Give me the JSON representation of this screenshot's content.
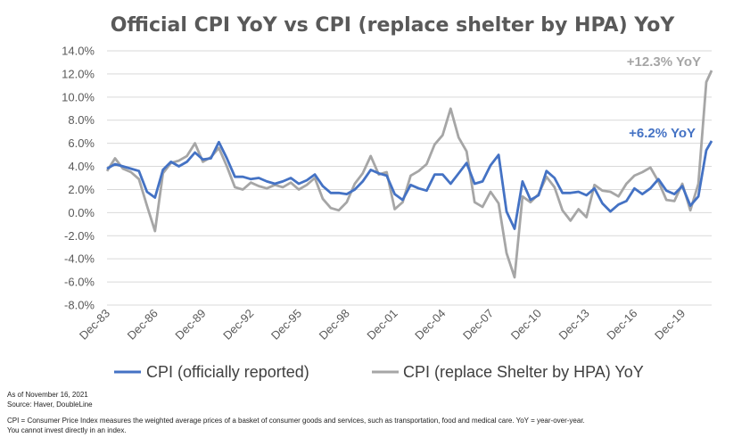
{
  "chart_data": {
    "type": "line",
    "title": "Official CPI YoY vs CPI (replace shelter by HPA) YoY",
    "xlabel": "",
    "ylabel": "",
    "ylim": [
      -8,
      14
    ],
    "y_ticks": [
      "14.0%",
      "12.0%",
      "10.0%",
      "8.0%",
      "6.0%",
      "4.0%",
      "2.0%",
      "0.0%",
      "-2.0%",
      "-4.0%",
      "-6.0%",
      "-8.0%"
    ],
    "x_ticks": [
      "Dec-83",
      "Dec-86",
      "Dec-89",
      "Dec-92",
      "Dec-95",
      "Dec-98",
      "Dec-01",
      "Dec-04",
      "Dec-07",
      "Dec-10",
      "Dec-13",
      "Dec-16",
      "Dec-19"
    ],
    "grid": "horizontal",
    "legend": "bottom",
    "series": [
      {
        "name": "CPI (officially reported)",
        "color": "#4472C4",
        "x": [
          "Dec-83",
          "Jun-84",
          "Dec-84",
          "Jun-85",
          "Dec-85",
          "Jun-86",
          "Dec-86",
          "Jun-87",
          "Dec-87",
          "Jun-88",
          "Dec-88",
          "Jun-89",
          "Dec-89",
          "Jun-90",
          "Dec-90",
          "Jun-91",
          "Dec-91",
          "Jun-92",
          "Dec-92",
          "Jun-93",
          "Dec-93",
          "Jun-94",
          "Dec-94",
          "Jun-95",
          "Dec-95",
          "Jun-96",
          "Dec-96",
          "Jun-97",
          "Dec-97",
          "Jun-98",
          "Dec-98",
          "Jun-99",
          "Dec-99",
          "Jun-00",
          "Dec-00",
          "Jun-01",
          "Dec-01",
          "Jun-02",
          "Dec-02",
          "Jun-03",
          "Dec-03",
          "Jun-04",
          "Dec-04",
          "Jun-05",
          "Dec-05",
          "Jun-06",
          "Dec-06",
          "Jun-07",
          "Dec-07",
          "Jun-08",
          "Dec-08",
          "Jun-09",
          "Dec-09",
          "Jun-10",
          "Dec-10",
          "Jun-11",
          "Dec-11",
          "Jun-12",
          "Dec-12",
          "Jun-13",
          "Dec-13",
          "Jun-14",
          "Dec-14",
          "Jun-15",
          "Dec-15",
          "Jun-16",
          "Dec-16",
          "Jun-17",
          "Dec-17",
          "Jun-18",
          "Dec-18",
          "Jun-19",
          "Dec-19",
          "Jun-20",
          "Dec-20",
          "Jun-21",
          "Oct-21"
        ],
        "values": [
          3.8,
          4.2,
          4.0,
          3.8,
          3.6,
          1.8,
          1.3,
          3.7,
          4.4,
          4.0,
          4.4,
          5.2,
          4.6,
          4.7,
          6.1,
          4.7,
          3.1,
          3.1,
          2.9,
          3.0,
          2.7,
          2.5,
          2.7,
          3.0,
          2.5,
          2.8,
          3.3,
          2.3,
          1.7,
          1.7,
          1.6,
          2.0,
          2.7,
          3.7,
          3.4,
          3.2,
          1.6,
          1.1,
          2.4,
          2.1,
          1.9,
          3.3,
          3.3,
          2.5,
          3.4,
          4.3,
          2.5,
          2.7,
          4.1,
          5.0,
          0.1,
          -1.4,
          2.7,
          1.1,
          1.5,
          3.6,
          3.0,
          1.7,
          1.7,
          1.8,
          1.5,
          2.1,
          0.8,
          0.1,
          0.7,
          1.0,
          2.1,
          1.6,
          2.1,
          2.9,
          1.9,
          1.6,
          2.3,
          0.6,
          1.4,
          5.4,
          6.2
        ]
      },
      {
        "name": "CPI (replace Shelter by HPA) YoY",
        "color": "#A6A6A6",
        "x": [
          "Dec-83",
          "Jun-84",
          "Dec-84",
          "Jun-85",
          "Dec-85",
          "Jun-86",
          "Dec-86",
          "Jun-87",
          "Dec-87",
          "Jun-88",
          "Dec-88",
          "Jun-89",
          "Dec-89",
          "Jun-90",
          "Dec-90",
          "Jun-91",
          "Dec-91",
          "Jun-92",
          "Dec-92",
          "Jun-93",
          "Dec-93",
          "Jun-94",
          "Dec-94",
          "Jun-95",
          "Dec-95",
          "Jun-96",
          "Dec-96",
          "Jun-97",
          "Dec-97",
          "Jun-98",
          "Dec-98",
          "Jun-99",
          "Dec-99",
          "Jun-00",
          "Dec-00",
          "Jun-01",
          "Dec-01",
          "Jun-02",
          "Dec-02",
          "Jun-03",
          "Dec-03",
          "Jun-04",
          "Dec-04",
          "Jun-05",
          "Dec-05",
          "Jun-06",
          "Dec-06",
          "Jun-07",
          "Dec-07",
          "Jun-08",
          "Dec-08",
          "Jun-09",
          "Dec-09",
          "Jun-10",
          "Dec-10",
          "Jun-11",
          "Dec-11",
          "Jun-12",
          "Dec-12",
          "Jun-13",
          "Dec-13",
          "Jun-14",
          "Dec-14",
          "Jun-15",
          "Dec-15",
          "Jun-16",
          "Dec-16",
          "Jun-17",
          "Dec-17",
          "Jun-18",
          "Dec-18",
          "Jun-19",
          "Dec-19",
          "Jun-20",
          "Dec-20",
          "Jun-21",
          "Oct-21"
        ],
        "values": [
          3.6,
          4.7,
          3.8,
          3.5,
          2.9,
          0.6,
          -1.6,
          3.4,
          4.3,
          4.5,
          4.9,
          6.0,
          4.4,
          4.8,
          5.6,
          4.0,
          2.2,
          2.0,
          2.6,
          2.3,
          2.1,
          2.4,
          2.2,
          2.6,
          2.0,
          2.4,
          3.0,
          1.2,
          0.4,
          0.2,
          0.9,
          2.5,
          3.4,
          4.9,
          3.3,
          3.5,
          0.3,
          0.9,
          3.2,
          3.6,
          4.2,
          5.9,
          6.7,
          9.0,
          6.5,
          5.3,
          0.9,
          0.5,
          1.8,
          0.8,
          -3.5,
          -5.6,
          1.4,
          0.9,
          1.6,
          3.1,
          2.2,
          0.2,
          -0.7,
          0.3,
          -0.4,
          2.4,
          1.9,
          1.8,
          1.4,
          2.5,
          3.2,
          3.5,
          3.9,
          2.7,
          1.1,
          1.0,
          2.5,
          0.2,
          2.5,
          11.3,
          12.3
        ]
      }
    ],
    "annotations": [
      {
        "text": "+12.3% YoY",
        "color": "#A6A6A6"
      },
      {
        "text": "+6.2% YoY",
        "color": "#4472C4"
      }
    ]
  },
  "footer": {
    "as_of": "As of November 16, 2021",
    "source": "Source: Haver, DoubleLine",
    "definition": "CPI = Consumer Price Index measures the weighted average prices of a basket of consumer goods and services, such as transportation, food and medical care. YoY = year-over-year.",
    "disclaimer": "You cannot invest directly in an index."
  }
}
